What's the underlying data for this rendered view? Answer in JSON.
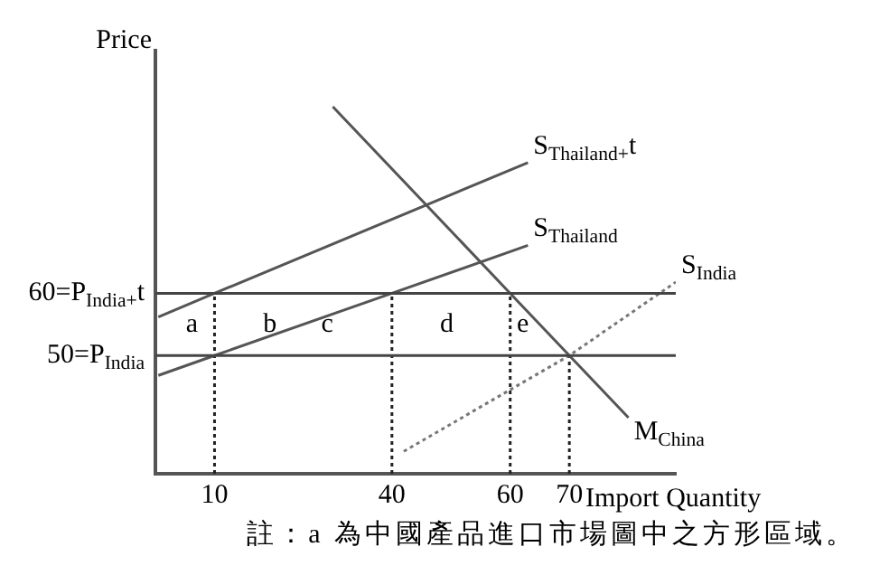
{
  "chart_data": {
    "type": "line",
    "ylabel": "Price",
    "xlabel": "Import Quantity",
    "xlim": [
      0,
      88
    ],
    "ylim": [
      31,
      99
    ],
    "xticks": [
      10,
      40,
      60,
      70
    ],
    "yticks": [
      {
        "value": 60,
        "label": "60=P$_{India+}$t"
      },
      {
        "value": 50,
        "label": "50=P$_{India}$"
      }
    ],
    "grid": false,
    "legend": false,
    "marker": "none",
    "series": [
      {
        "name": "M$_{China}$",
        "color": "#555555",
        "x": [
          30,
          60,
          70,
          80
        ],
        "values": [
          90,
          60,
          50,
          40
        ]
      },
      {
        "name": "S$_{Thailand+}$t",
        "color": "#555555",
        "x": [
          0.5,
          10,
          63
        ],
        "values": [
          56.2,
          60,
          81
        ]
      },
      {
        "name": "S$_{Thailand}$",
        "color": "#555555",
        "x": [
          0.5,
          10,
          40,
          63
        ],
        "values": [
          46.8,
          50,
          60,
          67.7
        ]
      },
      {
        "name": "S$_{India}$",
        "color": "#777777",
        "line_style": "dotted",
        "x": [
          42,
          70,
          88
        ],
        "values": [
          34.6,
          50,
          61.8
        ]
      },
      {
        "color": "#222222",
        "line_style": "dotted",
        "x": [
          10,
          10
        ],
        "values": [
          31,
          60
        ]
      },
      {
        "color": "#222222",
        "line_style": "dotted",
        "x": [
          40,
          40
        ],
        "values": [
          31,
          60
        ]
      },
      {
        "color": "#222222",
        "line_style": "dotted",
        "x": [
          60,
          60
        ],
        "values": [
          31,
          60
        ]
      },
      {
        "color": "#222222",
        "line_style": "dotted",
        "x": [
          70,
          70
        ],
        "values": [
          31,
          50
        ]
      }
    ],
    "ref_lines": [
      {
        "axis": "y",
        "value": 60,
        "color": "#444444"
      },
      {
        "axis": "y",
        "value": 50,
        "color": "#444444"
      }
    ],
    "annotations": [
      "a",
      "b",
      "c",
      "d",
      "e",
      "註：a 為中國產品進口市場圖中之方形區域。"
    ]
  }
}
